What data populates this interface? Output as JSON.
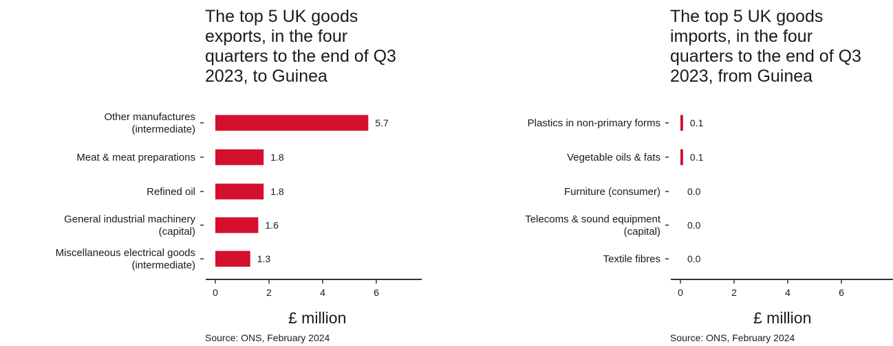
{
  "chart_data": [
    {
      "type": "bar",
      "orientation": "horizontal",
      "title": "The top 5 UK goods\nexports, in the four\nquarters to the end of Q3\n2023, to Guinea",
      "categories": [
        [
          "Other manufactures",
          "(intermediate)"
        ],
        [
          "Meat & meat preparations"
        ],
        [
          "Refined oil"
        ],
        [
          "General industrial machinery",
          "(capital)"
        ],
        [
          "Miscellaneous electrical goods",
          "(intermediate)"
        ]
      ],
      "values": [
        5.7,
        1.8,
        1.8,
        1.6,
        1.3
      ],
      "value_labels": [
        "5.7",
        "1.8",
        "1.8",
        "1.6",
        "1.3"
      ],
      "xlabel": "£ million",
      "xlim": [
        0,
        7.5
      ],
      "xticks": [
        0,
        2,
        4,
        6
      ],
      "grid": false,
      "color": "#d3102e",
      "source": "Source: ONS, February 2024"
    },
    {
      "type": "bar",
      "orientation": "horizontal",
      "title": "The top 5 UK goods\nimports, in the four\nquarters to the end of Q3\n2023, from Guinea",
      "categories": [
        [
          "Plastics in non-primary forms"
        ],
        [
          "Vegetable oils & fats"
        ],
        [
          "Furniture (consumer)"
        ],
        [
          "Telecoms & sound equipment",
          "(capital)"
        ],
        [
          "Textile fibres"
        ]
      ],
      "values": [
        0.1,
        0.1,
        0.0,
        0.0,
        0.0
      ],
      "value_labels": [
        "0.1",
        "0.1",
        "0.0",
        "0.0",
        "0.0"
      ],
      "xlabel": "£ million",
      "xlim": [
        0,
        7.5
      ],
      "xticks": [
        0,
        2,
        4,
        6
      ],
      "grid": false,
      "color": "#d3102e",
      "source": "Source: ONS, February 2024"
    }
  ]
}
